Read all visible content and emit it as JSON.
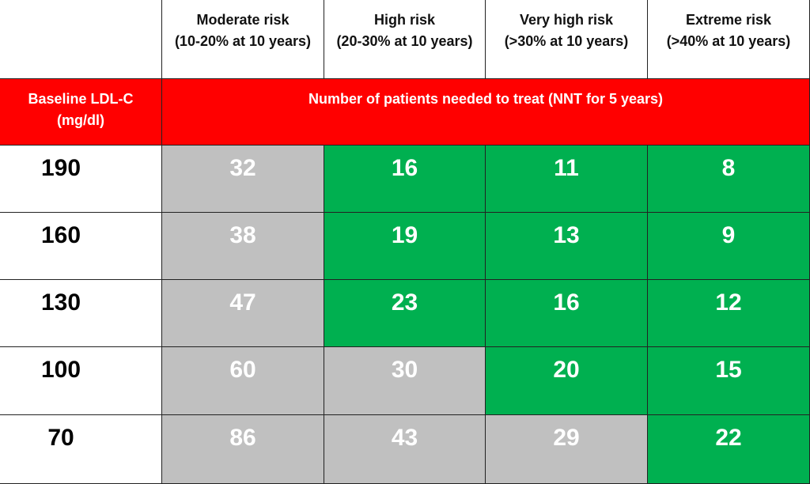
{
  "table": {
    "columns": [
      {
        "title": "Moderate risk",
        "range": "(10-20% at 10 years)"
      },
      {
        "title": "High risk",
        "range": "(20-30% at 10 years)"
      },
      {
        "title": "Very high risk",
        "range": "(>30% at 10 years)"
      },
      {
        "title": "Extreme risk",
        "range": "(>40% at 10 years)"
      }
    ],
    "row_header": {
      "title": "Baseline LDL-C",
      "unit": "(mg/dl)"
    },
    "span_header": "Number of patients needed to treat (NNT for 5 years)",
    "rows": [
      {
        "label": 190,
        "values": [
          32,
          16,
          11,
          8
        ],
        "colors": [
          "#c0c0c0",
          "#00b050",
          "#00b050",
          "#00b050"
        ]
      },
      {
        "label": 160,
        "values": [
          38,
          19,
          13,
          9
        ],
        "colors": [
          "#c0c0c0",
          "#00b050",
          "#00b050",
          "#00b050"
        ]
      },
      {
        "label": 130,
        "values": [
          47,
          23,
          16,
          12
        ],
        "colors": [
          "#c0c0c0",
          "#00b050",
          "#00b050",
          "#00b050"
        ]
      },
      {
        "label": 100,
        "values": [
          60,
          30,
          20,
          15
        ],
        "colors": [
          "#c0c0c0",
          "#c0c0c0",
          "#00b050",
          "#00b050"
        ]
      },
      {
        "label": 70,
        "values": [
          86,
          43,
          29,
          22
        ],
        "colors": [
          "#c0c0c0",
          "#c0c0c0",
          "#c0c0c0",
          "#00b050"
        ]
      }
    ]
  }
}
